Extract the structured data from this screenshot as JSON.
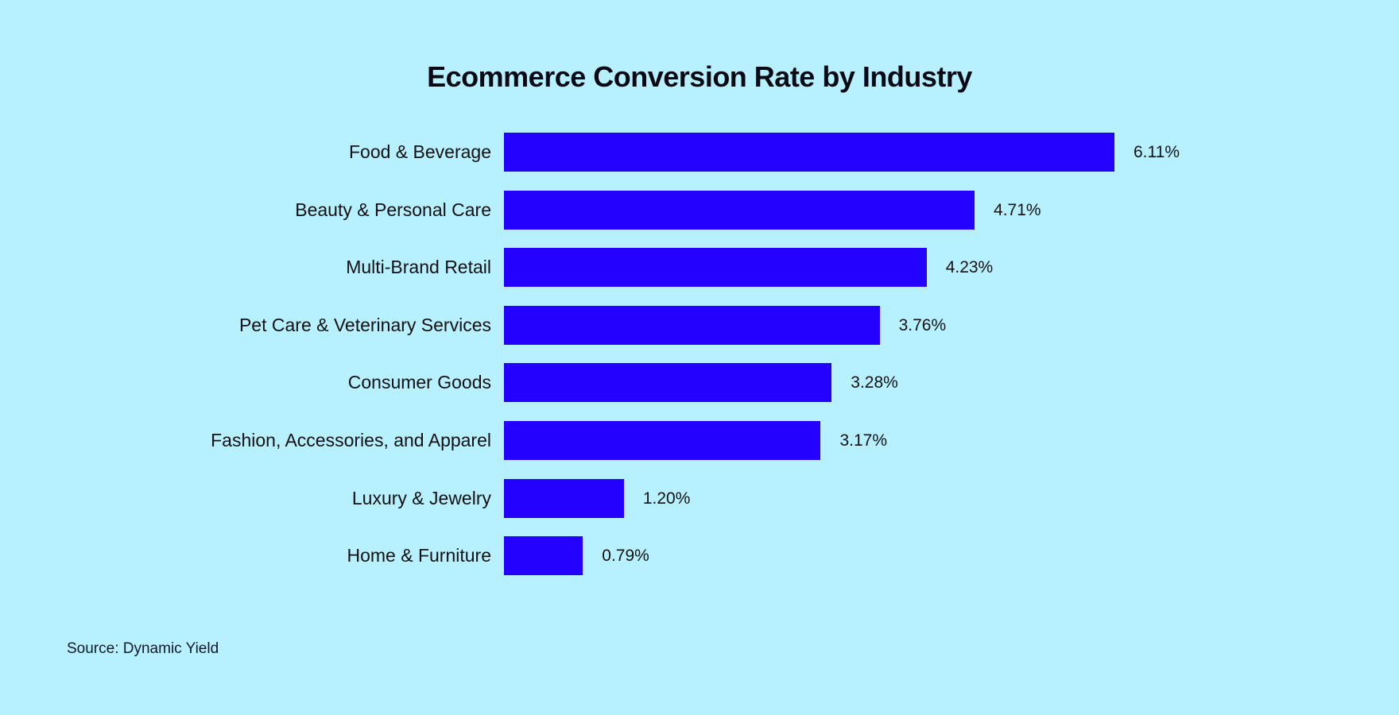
{
  "title": "Ecommerce Conversion Rate by Industry",
  "source": "Source: Dynamic Yield",
  "colors": {
    "background": "#b7f0ff",
    "bar": "#2400ff",
    "text": "#111111"
  },
  "chart_data": {
    "type": "bar",
    "orientation": "horizontal",
    "title": "Ecommerce Conversion Rate by Industry",
    "xlabel": "",
    "ylabel": "",
    "categories": [
      "Food & Beverage",
      "Beauty & Personal Care",
      "Multi-Brand Retail",
      "Pet Care & Veterinary Services",
      "Consumer Goods",
      "Fashion, Accessories, and Apparel",
      "Luxury & Jewelry",
      "Home & Furniture"
    ],
    "values": [
      6.11,
      4.71,
      4.23,
      3.76,
      3.28,
      3.17,
      1.2,
      0.79
    ],
    "value_labels": [
      "6.11%",
      "4.71%",
      "4.23%",
      "3.76%",
      "3.28%",
      "3.17%",
      "1.20%",
      "0.79%"
    ],
    "unit": "%",
    "grid": false,
    "legend": null,
    "annotation": "Source: Dynamic Yield"
  }
}
